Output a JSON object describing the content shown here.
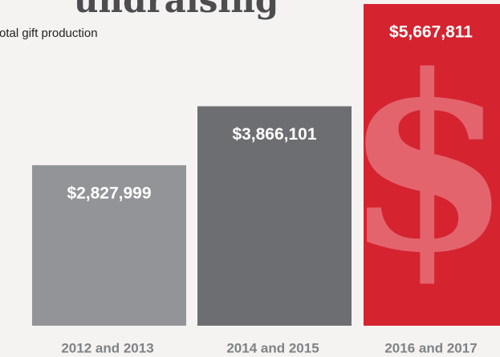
{
  "chart_data": {
    "type": "bar",
    "title": "undraising",
    "subtitle": "otal gift production",
    "categories": [
      "2012 and 2013",
      "2014 and 2015",
      "2016 and 2017"
    ],
    "values": [
      2827999,
      3866101,
      5667811
    ],
    "value_labels": [
      "$2,827,999",
      "$3,866,101",
      "$5,667,811"
    ],
    "colors": [
      "#929497",
      "#6d6e71",
      "#d52330"
    ],
    "icon": "$"
  }
}
